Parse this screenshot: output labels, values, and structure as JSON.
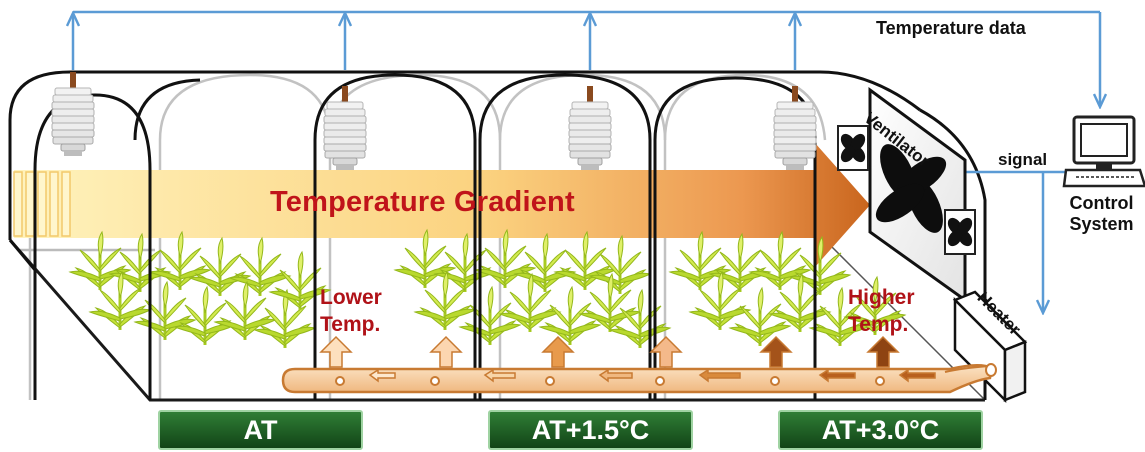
{
  "labels": {
    "temperature_data": "Temperature data",
    "signal": "signal",
    "control_system_line1": "Control",
    "control_system_line2": "System",
    "ventilator": "Ventilator",
    "heater": "Heater",
    "gradient": "Temperature Gradient",
    "lower_temp_line1": "Lower",
    "lower_temp_line2": "Temp.",
    "higher_temp_line1": "Higher",
    "higher_temp_line2": "Temp."
  },
  "zones": [
    {
      "label": "AT"
    },
    {
      "label": "AT+1.5°C"
    },
    {
      "label": "AT+3.0°C"
    }
  ],
  "colors": {
    "data_line": "#5b9bd5",
    "gradient_start": "#fff1b5",
    "gradient_end": "#c8661c",
    "gradient_text": "#c0141a",
    "zone_badge": "#1f5e25",
    "plant": "#b8d92a",
    "pipe": "#c87a32"
  },
  "icons": [
    "temperature-sensor-icon",
    "fan-icon",
    "computer-icon",
    "heater-icon",
    "plant-icon",
    "heat-arrow-icon"
  ]
}
